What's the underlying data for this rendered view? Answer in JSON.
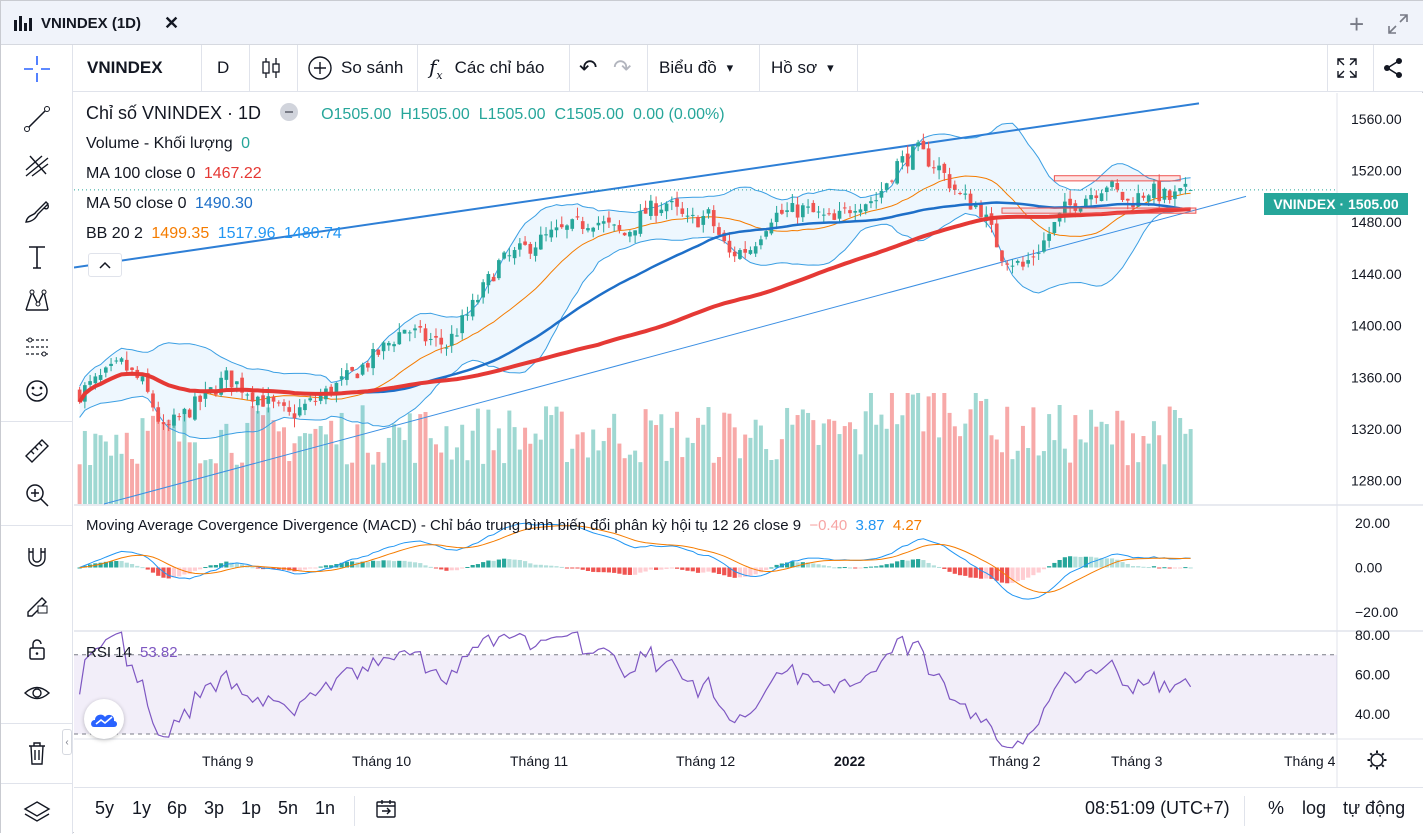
{
  "window": {
    "title": "VNINDEX (1D)"
  },
  "toolbar": {
    "symbol": "VNINDEX",
    "interval": "D",
    "compare_label": "So sánh",
    "indicators_label": "Các chỉ báo",
    "chart_label": "Biểu đồ",
    "profile_label": "Hồ sơ"
  },
  "legend": {
    "title": "Chỉ số VNINDEX · 1D",
    "ohlc": {
      "o": "O1505.00",
      "h": "H1505.00",
      "l": "L1505.00",
      "c": "C1505.00",
      "chg": "0.00 (0.00%)"
    },
    "volume_label": "Volume - Khối lượng",
    "volume_value": "0",
    "ma100_label": "MA 100 close 0",
    "ma100_value": "1467.22",
    "ma50_label": "MA 50 close 0",
    "ma50_value": "1490.30",
    "bb_label": "BB 20 2",
    "bb_mid": "1499.35",
    "bb_up": "1517.96",
    "bb_low": "1480.74"
  },
  "macd_legend": {
    "label": "Moving Average Covergence Divergence (MACD) - Chỉ báo trung bình biến đổi phân kỳ hội tụ 12 26 close 9",
    "hist": "−0.40",
    "macd": "3.87",
    "signal": "4.27"
  },
  "rsi_legend": {
    "label": "RSI 14",
    "value": "53.82"
  },
  "price_tag": "VNINDEX · 1505.00",
  "colors": {
    "up": "#26a69a",
    "down": "#ef5350",
    "ma100": "#e53935",
    "ma50": "#1e6fc8",
    "bb": "#3b9fe3",
    "macd": "#2196f3",
    "signal": "#f57c00",
    "rsi": "#7e57c2",
    "accent": "#2962ff"
  },
  "chart_data": [
    {
      "type": "candlestick",
      "title": "Chỉ số VNINDEX · 1D",
      "ylim": [
        1262,
        1580
      ],
      "yticks": [
        "1560.00",
        "1520.00",
        "1480.00",
        "1440.00",
        "1400.00",
        "1360.00",
        "1320.00",
        "1280.00"
      ],
      "ytick_values": [
        1560,
        1520,
        1480,
        1440,
        1400,
        1360,
        1320,
        1280
      ],
      "xticks": [
        "Tháng 9",
        "Tháng 10",
        "Tháng 11",
        "Tháng 12",
        "2022",
        "Tháng 2",
        "Tháng 3",
        "Tháng 4"
      ],
      "anchors": [
        [
          0,
          1348
        ],
        [
          8,
          1370
        ],
        [
          12,
          1355
        ],
        [
          14,
          1338
        ],
        [
          16,
          1318
        ],
        [
          24,
          1345
        ],
        [
          28,
          1360
        ],
        [
          34,
          1345
        ],
        [
          40,
          1330
        ],
        [
          46,
          1345
        ],
        [
          52,
          1362
        ],
        [
          56,
          1375
        ],
        [
          62,
          1398
        ],
        [
          66,
          1390
        ],
        [
          70,
          1385
        ],
        [
          74,
          1408
        ],
        [
          80,
          1448
        ],
        [
          86,
          1462
        ],
        [
          90,
          1470
        ],
        [
          98,
          1482
        ],
        [
          104,
          1470
        ],
        [
          108,
          1488
        ],
        [
          112,
          1495
        ],
        [
          116,
          1480
        ],
        [
          120,
          1485
        ],
        [
          124,
          1455
        ],
        [
          128,
          1460
        ],
        [
          132,
          1485
        ],
        [
          138,
          1490
        ],
        [
          144,
          1480
        ],
        [
          148,
          1495
        ],
        [
          152,
          1498
        ],
        [
          156,
          1525
        ],
        [
          160,
          1535
        ],
        [
          164,
          1522
        ],
        [
          168,
          1500
        ],
        [
          172,
          1490
        ],
        [
          176,
          1455
        ],
        [
          180,
          1445
        ],
        [
          184,
          1465
        ],
        [
          188,
          1490
        ],
        [
          192,
          1500
        ],
        [
          196,
          1510
        ],
        [
          200,
          1495
        ],
        [
          204,
          1505
        ],
        [
          208,
          1498
        ],
        [
          212,
          1505
        ]
      ],
      "n_bars": 213,
      "last": {
        "o": 1505.0,
        "h": 1505.0,
        "l": 1505.0,
        "c": 1505.0
      }
    },
    {
      "type": "line",
      "title": "MACD 12 26 close 9",
      "ylim": [
        -28,
        28
      ],
      "yticks": [
        "20.00",
        "0.00",
        "−20.00"
      ],
      "ytick_values": [
        20,
        0,
        -20
      ],
      "last": {
        "hist": -0.4,
        "macd": 3.87,
        "signal": 4.27
      }
    },
    {
      "type": "line",
      "title": "RSI 14",
      "ylim": [
        28,
        82
      ],
      "yticks": [
        "80.00",
        "60.00",
        "40.00"
      ],
      "ytick_values": [
        80,
        60,
        40
      ],
      "bands": [
        70,
        30
      ],
      "last": 53.82
    }
  ],
  "bottom": {
    "ranges": [
      "5y",
      "1y",
      "6p",
      "3p",
      "1p",
      "5n",
      "1n"
    ],
    "time": "08:51:09 (UTC+7)",
    "percent": "%",
    "log": "log",
    "auto": "tự động"
  }
}
